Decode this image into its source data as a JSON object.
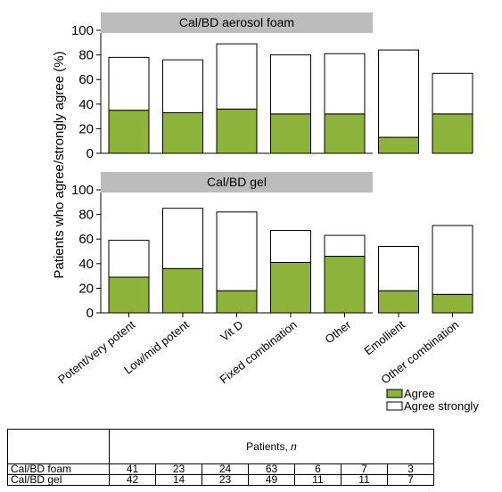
{
  "chart_data": [
    {
      "type": "bar",
      "stacked": true,
      "title": "Cal/BD aerosol foam",
      "ylabel": "Patients who agree/strongly agree (%)",
      "ylim": [
        0,
        100
      ],
      "yticks": [
        0,
        20,
        40,
        60,
        80,
        100
      ],
      "categories": [
        "Potent/very potent",
        "Low/mid potent",
        "Vit D",
        "Fixed combination",
        "Other",
        "Emollient",
        "Other combination"
      ],
      "series": [
        {
          "name": "Agree",
          "color": "#8db33a",
          "values": [
            35,
            33,
            36,
            32,
            32,
            13,
            32
          ]
        },
        {
          "name": "Agree strongly",
          "color": "#ffffff",
          "values": [
            43,
            43,
            53,
            48,
            49,
            71,
            33
          ]
        }
      ]
    },
    {
      "type": "bar",
      "stacked": true,
      "title": "Cal/BD gel",
      "ylim": [
        0,
        100
      ],
      "yticks": [
        0,
        20,
        40,
        60,
        80,
        100
      ],
      "categories": [
        "Potent/very potent",
        "Low/mid potent",
        "Vit D",
        "Fixed combination",
        "Other",
        "Emollient",
        "Other combination"
      ],
      "series": [
        {
          "name": "Agree",
          "color": "#8db33a",
          "values": [
            29,
            36,
            18,
            41,
            46,
            18,
            15
          ]
        },
        {
          "name": "Agree strongly",
          "color": "#ffffff",
          "values": [
            30,
            49,
            64,
            26,
            17,
            36,
            56
          ]
        }
      ]
    }
  ],
  "legend": {
    "items": [
      {
        "label": "Agree",
        "color": "#8db33a"
      },
      {
        "label": "Agree strongly",
        "color": "#ffffff"
      }
    ]
  },
  "table": {
    "header": "Patients, ",
    "header_italic": "n",
    "rows": [
      {
        "label": "Cal/BD foam",
        "values": [
          "41",
          "23",
          "24",
          "63",
          "6",
          "7",
          "3"
        ]
      },
      {
        "label": "Cal/BD gel",
        "values": [
          "42",
          "14",
          "23",
          "49",
          "11",
          "11",
          "7"
        ]
      }
    ]
  },
  "colors": {
    "panel_header": "#bcbcbc",
    "agree": "#8db33a",
    "border": "#000000"
  }
}
